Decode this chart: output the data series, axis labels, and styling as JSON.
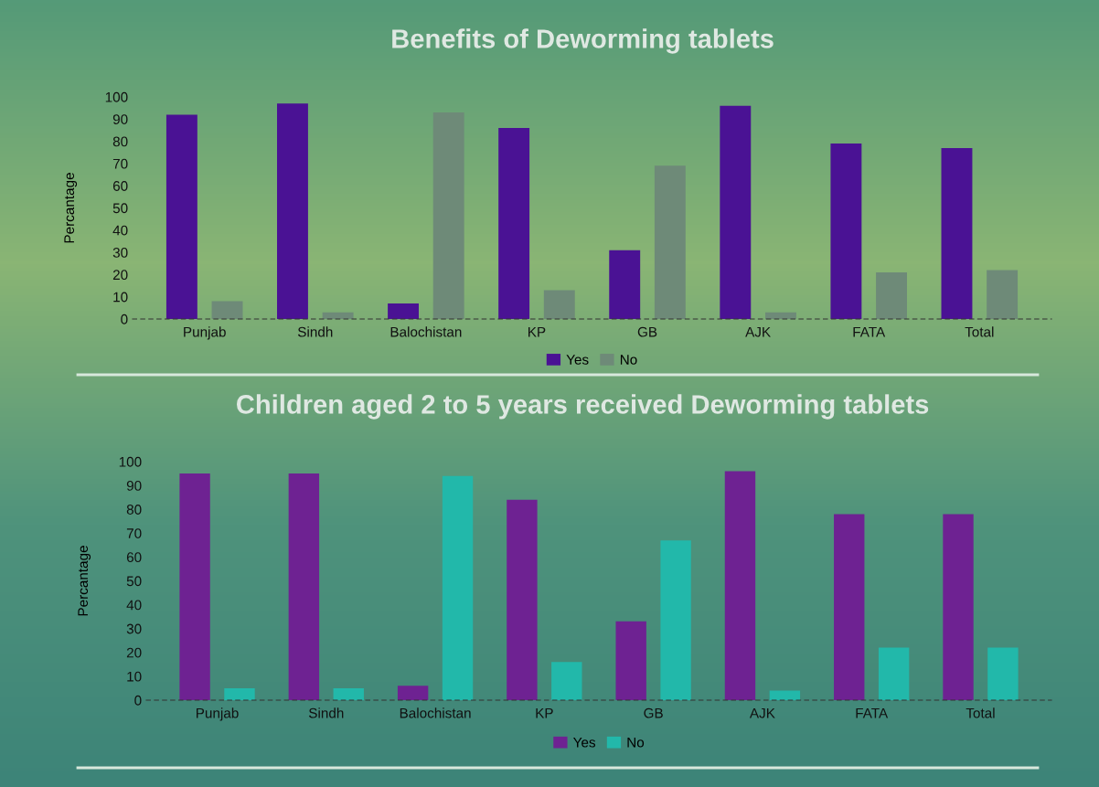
{
  "chart_data": [
    {
      "type": "bar",
      "title": "Benefits of Deworming tablets",
      "ylabel": "Percantage",
      "categories": [
        "Punjab",
        "Sindh",
        "Balochistan",
        "KP",
        "GB",
        "AJK",
        "FATA",
        "Total"
      ],
      "series": [
        {
          "name": "Yes",
          "color": "#4a1294",
          "values": [
            92,
            97,
            7,
            86,
            31,
            96,
            79,
            77
          ]
        },
        {
          "name": "No",
          "color": "#6e8a78",
          "values": [
            8,
            3,
            93,
            13,
            69,
            3,
            21,
            22
          ]
        }
      ],
      "ylim": [
        0,
        100
      ],
      "yticks": [
        0,
        10,
        20,
        30,
        40,
        50,
        60,
        70,
        80,
        90,
        100
      ],
      "grid": false,
      "legend": "bottom"
    },
    {
      "type": "bar",
      "title": "Children aged 2 to 5 years received Deworming tablets",
      "ylabel": "Percantage",
      "categories": [
        "Punjab",
        "Sindh",
        "Balochistan",
        "KP",
        "GB",
        "AJK",
        "FATA",
        "Total"
      ],
      "series": [
        {
          "name": "Yes",
          "color": "#6e2292",
          "values": [
            95,
            95,
            6,
            84,
            33,
            96,
            78,
            78
          ]
        },
        {
          "name": "No",
          "color": "#22b8aa",
          "values": [
            5,
            5,
            94,
            16,
            67,
            4,
            22,
            22
          ]
        }
      ],
      "ylim": [
        0,
        100
      ],
      "yticks": [
        0,
        10,
        20,
        30,
        40,
        50,
        60,
        70,
        80,
        90,
        100
      ],
      "grid": false,
      "legend": "bottom"
    }
  ]
}
